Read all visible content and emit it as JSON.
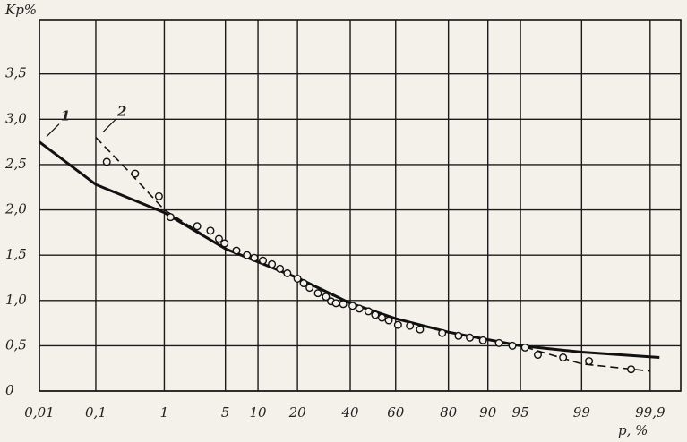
{
  "chart_data": {
    "type": "line",
    "y_label": "Kp%",
    "x_label": "p, %",
    "scale_x": "probability",
    "grid": true,
    "xlim": [
      0.01,
      99.97
    ],
    "ylim": [
      0,
      4.1
    ],
    "xticks": [
      {
        "value": 0.01,
        "label": "0,01"
      },
      {
        "value": 0.1,
        "label": "0,1"
      },
      1,
      5,
      10,
      20,
      40,
      60,
      80,
      90,
      95,
      99,
      {
        "value": 99.9,
        "label": "99,9"
      }
    ],
    "yticks": [
      0,
      {
        "value": 0.5,
        "label": "0,5"
      },
      {
        "value": 1,
        "label": "1,0"
      },
      {
        "value": 1.5,
        "label": "1,5"
      },
      {
        "value": 2,
        "label": "2,0"
      },
      {
        "value": 2.5,
        "label": "2,5"
      },
      {
        "value": 3,
        "label": "3,0"
      },
      {
        "value": 3.5,
        "label": "3,5"
      }
    ],
    "series": [
      {
        "name": "1",
        "color": "#111111",
        "style": "solid",
        "x": [
          0.01,
          0.1,
          1,
          5,
          20,
          40,
          60,
          80,
          95,
          99,
          99.93
        ],
        "values": [
          2.75,
          2.28,
          1.97,
          1.57,
          1.25,
          0.97,
          0.8,
          0.65,
          0.5,
          0.43,
          0.37
        ]
      },
      {
        "name": "2",
        "color": "#111111",
        "style": "dashed",
        "x": [
          0.1,
          0.3,
          1,
          5,
          20,
          40,
          60,
          80,
          95,
          99,
          99.9
        ],
        "values": [
          2.8,
          2.45,
          2.0,
          1.57,
          1.25,
          0.97,
          0.8,
          0.65,
          0.5,
          0.3,
          0.22
        ]
      },
      {
        "color": "#111111",
        "style": "markers",
        "x": [
          0.15,
          0.4,
          0.85,
          1.2,
          2.5,
          3.5,
          4.3,
          4.9,
          6.4,
          8,
          9.3,
          11,
          13,
          15,
          17,
          20,
          22,
          24,
          27,
          30,
          32,
          34,
          37,
          41,
          44,
          48,
          51,
          54,
          57,
          61,
          66,
          70,
          78,
          83,
          86,
          89,
          92,
          94,
          95.5,
          96.7,
          98.3,
          99.2,
          99.8
        ],
        "values": [
          2.53,
          2.4,
          2.15,
          1.92,
          1.82,
          1.77,
          1.68,
          1.63,
          1.55,
          1.5,
          1.47,
          1.44,
          1.4,
          1.35,
          1.3,
          1.24,
          1.19,
          1.14,
          1.08,
          1.04,
          0.99,
          0.97,
          0.96,
          0.94,
          0.91,
          0.88,
          0.84,
          0.81,
          0.78,
          0.73,
          0.72,
          0.68,
          0.64,
          0.61,
          0.59,
          0.56,
          0.53,
          0.5,
          0.48,
          0.4,
          0.37,
          0.33,
          0.24
        ]
      }
    ]
  }
}
